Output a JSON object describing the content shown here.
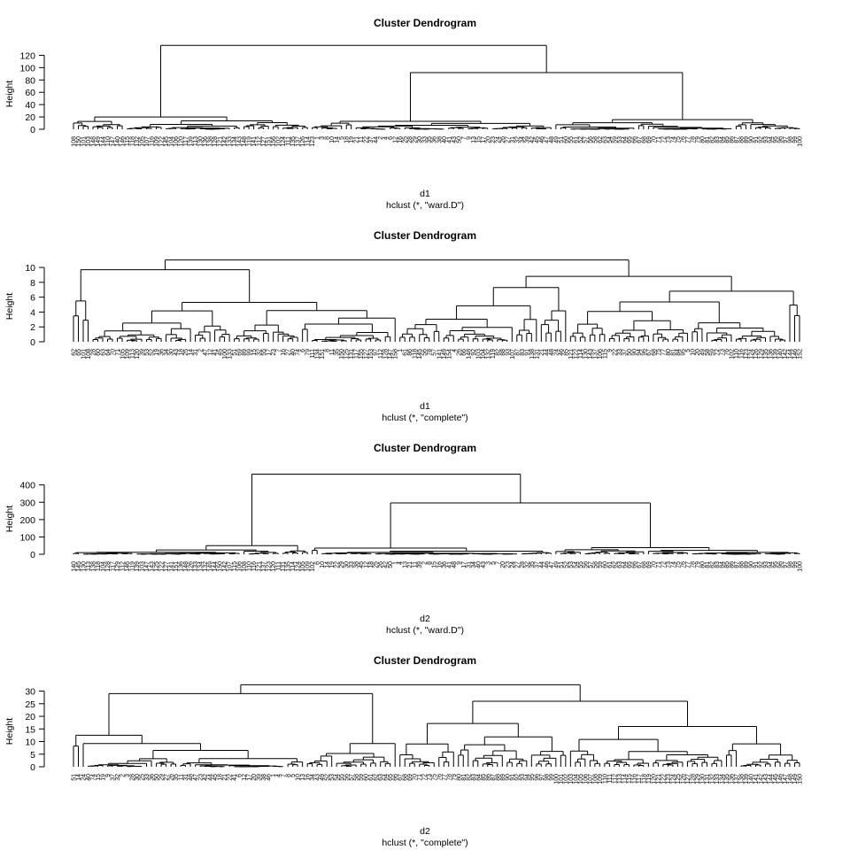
{
  "chart_data": [
    {
      "type": "dendrogram",
      "title": "Cluster Dendrogram",
      "ylabel": "Height",
      "xlabel": "d1",
      "sub": "hclust (*, \"ward.D\")",
      "yticks": [
        0,
        20,
        40,
        60,
        80,
        100,
        120
      ],
      "ylim": [
        0,
        135
      ],
      "n_leaves": 150,
      "leaf_labels": [
        "108",
        "150",
        "101",
        "103",
        "148",
        "149",
        "144",
        "110",
        "147",
        "140",
        "146",
        "115",
        "118",
        "132",
        "105",
        "107",
        "116",
        "109",
        "122",
        "145",
        "104",
        "106",
        "120",
        "117",
        "139",
        "113",
        "130",
        "136",
        "138",
        "128",
        "121",
        "142",
        "133",
        "134",
        "143",
        "148",
        "119",
        "141",
        "112",
        "127",
        "151",
        "156",
        "102",
        "124",
        "111",
        "135",
        "137",
        "126",
        "114",
        "123",
        "1",
        "3",
        "8",
        "10",
        "14",
        "5",
        "18",
        "19",
        "21",
        "11",
        "22",
        "37",
        "44",
        "2",
        "4",
        "6",
        "12",
        "16",
        "25",
        "28",
        "29",
        "30",
        "33",
        "35",
        "36",
        "38",
        "40",
        "41",
        "43",
        "50",
        "7",
        "9",
        "13",
        "15",
        "17",
        "20",
        "23",
        "24",
        "26",
        "27",
        "31",
        "32",
        "34",
        "39",
        "42",
        "45",
        "46",
        "47",
        "48",
        "49",
        "51",
        "60",
        "55",
        "61",
        "52",
        "57",
        "56",
        "58",
        "62",
        "63",
        "54",
        "59",
        "53",
        "64",
        "65",
        "66",
        "67",
        "68",
        "69",
        "70",
        "71",
        "72",
        "73",
        "74",
        "75",
        "76",
        "77",
        "78",
        "79",
        "80",
        "81",
        "82",
        "83",
        "84",
        "85",
        "86",
        "87",
        "88",
        "89",
        "90",
        "91",
        "92",
        "93",
        "94",
        "95",
        "96",
        "97",
        "98",
        "99",
        "100"
      ],
      "top_merges": [
        {
          "name": "root",
          "height": 136
        },
        {
          "name": "right",
          "height": 92
        },
        {
          "name": "left",
          "height": 20
        },
        {
          "name": "mid",
          "height": 20
        },
        {
          "name": "right2",
          "height": 22
        }
      ]
    },
    {
      "type": "dendrogram",
      "title": "Cluster Dendrogram",
      "ylabel": "Height",
      "xlabel": "d1",
      "sub": "hclust (*, \"complete\")",
      "yticks": [
        0,
        2,
        4,
        6,
        8,
        10
      ],
      "ylim": [
        0,
        11.2
      ],
      "n_leaves": 150,
      "leaf_labels": [
        "62",
        "65",
        "101",
        "108",
        "28",
        "60",
        "63",
        "64",
        "70",
        "71",
        "105",
        "109",
        "113",
        "120",
        "39",
        "53",
        "52",
        "19",
        "36",
        "34",
        "30",
        "43",
        "18",
        "25",
        "14",
        "31",
        "2",
        "47",
        "12",
        "41",
        "45",
        "100",
        "133",
        "51",
        "69",
        "89",
        "99",
        "15",
        "32",
        "55",
        "17",
        "23",
        "7",
        "16",
        "27",
        "40",
        "74",
        "6",
        "79",
        "111",
        "134",
        "151",
        "8",
        "11",
        "35",
        "150",
        "125",
        "131",
        "117",
        "155",
        "127",
        "153",
        "97",
        "112",
        "128",
        "147",
        "158",
        "1",
        "61",
        "86",
        "118",
        "145",
        "56",
        "78",
        "57",
        "141",
        "149",
        "154",
        "4",
        "26",
        "66",
        "148",
        "92",
        "103",
        "104",
        "132",
        "119",
        "82",
        "88",
        "93",
        "107",
        "87",
        "83",
        "91",
        "138",
        "131",
        "21",
        "44",
        "48",
        "24",
        "46",
        "85",
        "121",
        "122",
        "114",
        "130",
        "143",
        "137",
        "106",
        "115",
        "9",
        "22",
        "33",
        "37",
        "50",
        "90",
        "94",
        "96",
        "67",
        "68",
        "75",
        "77",
        "80",
        "81",
        "84",
        "95",
        "5",
        "10",
        "20",
        "49",
        "58",
        "59",
        "72",
        "73",
        "76",
        "102",
        "110",
        "116",
        "123",
        "124",
        "126",
        "129",
        "135",
        "136",
        "139",
        "140",
        "142",
        "144",
        "146",
        "152"
      ],
      "top_merges": [
        {
          "name": "root",
          "height": 11.0
        },
        {
          "name": "left",
          "height": 8.8
        },
        {
          "name": "right",
          "height": 9.7
        }
      ]
    },
    {
      "type": "dendrogram",
      "title": "Cluster Dendrogram",
      "ylabel": "Height",
      "xlabel": "d2",
      "sub": "hclust (*, \"ward.D\")",
      "yticks": [
        0,
        100,
        200,
        300,
        400
      ],
      "ylim": [
        0,
        480
      ],
      "n_leaves": 150,
      "leaf_labels": [
        "140",
        "145",
        "130",
        "113",
        "138",
        "118",
        "104",
        "128",
        "117",
        "129",
        "112",
        "146",
        "119",
        "139",
        "103",
        "147",
        "143",
        "125",
        "122",
        "127",
        "141",
        "151",
        "136",
        "148",
        "126",
        "133",
        "134",
        "132",
        "149",
        "144",
        "150",
        "142",
        "107",
        "115",
        "106",
        "108",
        "110",
        "116",
        "121",
        "137",
        "123",
        "120",
        "111",
        "131",
        "135",
        "114",
        "124",
        "105",
        "109",
        "102",
        "6",
        "10",
        "14",
        "19",
        "22",
        "29",
        "30",
        "33",
        "38",
        "45",
        "12",
        "18",
        "25",
        "26",
        "42",
        "50",
        "1",
        "4",
        "13",
        "21",
        "11",
        "39",
        "2",
        "8",
        "15",
        "16",
        "36",
        "41",
        "48",
        "9",
        "17",
        "31",
        "34",
        "40",
        "43",
        "3",
        "5",
        "7",
        "20",
        "23",
        "24",
        "27",
        "28",
        "32",
        "35",
        "37",
        "44",
        "46",
        "47",
        "49",
        "51",
        "52",
        "53",
        "54",
        "55",
        "56",
        "57",
        "58",
        "59",
        "60",
        "61",
        "62",
        "63",
        "64",
        "65",
        "66",
        "67",
        "68",
        "69",
        "70",
        "71",
        "72",
        "73",
        "74",
        "75",
        "76",
        "77",
        "78",
        "79",
        "80",
        "81",
        "82",
        "83",
        "84",
        "85",
        "86",
        "87",
        "88",
        "89",
        "90",
        "91",
        "92",
        "93",
        "94",
        "95",
        "96",
        "97",
        "98",
        "99",
        "100"
      ],
      "top_merges": [
        {
          "name": "root",
          "height": 462
        },
        {
          "name": "right",
          "height": 296
        },
        {
          "name": "left",
          "height": 50
        }
      ]
    },
    {
      "type": "dendrogram",
      "title": "Cluster Dendrogram",
      "ylabel": "Height",
      "xlabel": "d2",
      "sub": "hclust (*, \"complete\")",
      "yticks": [
        0,
        5,
        10,
        15,
        20,
        25,
        30
      ],
      "ylim": [
        0,
        33
      ],
      "n_leaves": 150,
      "leaf_labels": [
        "51",
        "14",
        "24",
        "40",
        "74",
        "15",
        "19",
        "9",
        "37",
        "32",
        "2",
        "3",
        "28",
        "30",
        "25",
        "33",
        "36",
        "50",
        "29",
        "27",
        "26",
        "35",
        "11",
        "31",
        "48",
        "47",
        "23",
        "42",
        "44",
        "45",
        "18",
        "21",
        "22",
        "41",
        "6",
        "12",
        "17",
        "20",
        "39",
        "38",
        "46",
        "1",
        "4",
        "7",
        "8",
        "5",
        "10",
        "13",
        "16",
        "34",
        "43",
        "49",
        "52",
        "53",
        "54",
        "55",
        "56",
        "57",
        "58",
        "59",
        "60",
        "61",
        "62",
        "63",
        "64",
        "65",
        "66",
        "67",
        "68",
        "69",
        "70",
        "71",
        "72",
        "73",
        "75",
        "76",
        "77",
        "78",
        "79",
        "80",
        "81",
        "82",
        "83",
        "84",
        "85",
        "86",
        "87",
        "88",
        "89",
        "90",
        "91",
        "92",
        "93",
        "94",
        "95",
        "96",
        "97",
        "98",
        "99",
        "100",
        "101",
        "102",
        "103",
        "104",
        "105",
        "106",
        "107",
        "108",
        "109",
        "110",
        "111",
        "112",
        "113",
        "114",
        "115",
        "116",
        "117",
        "118",
        "119",
        "120",
        "121",
        "122",
        "123",
        "124",
        "125",
        "126",
        "127",
        "128",
        "129",
        "130",
        "131",
        "132",
        "133",
        "134",
        "135",
        "136",
        "137",
        "138",
        "139",
        "140",
        "141",
        "142",
        "143",
        "144",
        "145",
        "146",
        "147",
        "148",
        "149",
        "150"
      ],
      "top_merges": [
        {
          "name": "root",
          "height": 32.5
        },
        {
          "name": "left",
          "height": 26
        },
        {
          "name": "right",
          "height": 29
        }
      ]
    }
  ]
}
